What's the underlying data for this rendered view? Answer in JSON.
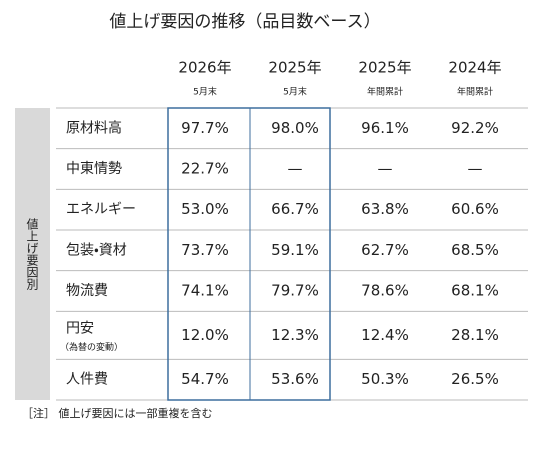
{
  "title": "値上げ要因の推移（品目数ベース）",
  "table": {
    "side_label": "値上げ要因別",
    "columns": [
      {
        "year": "2026年",
        "period": "5月末"
      },
      {
        "year": "2025年",
        "period": "5月末"
      },
      {
        "year": "2025年",
        "period": "年間累計"
      },
      {
        "year": "2024年",
        "period": "年間累計"
      }
    ],
    "rows": [
      {
        "label": "原材料高",
        "values": [
          "97.7%",
          "98.0%",
          "96.1%",
          "92.2%"
        ]
      },
      {
        "label": "中東情勢",
        "values": [
          "22.7%",
          "—",
          "—",
          "—"
        ]
      },
      {
        "label": "エネルギー",
        "values": [
          "53.0%",
          "66.7%",
          "63.8%",
          "60.6%"
        ]
      },
      {
        "label": "包装・資材",
        "values": [
          "73.7%",
          "59.1%",
          "62.7%",
          "68.5%"
        ]
      },
      {
        "label": "物流費",
        "values": [
          "74.1%",
          "79.7%",
          "78.6%",
          "68.1%"
        ]
      },
      {
        "label": "円安",
        "sublabel": "（為替の変動）",
        "values": [
          "12.0%",
          "12.3%",
          "12.4%",
          "28.1%"
        ]
      },
      {
        "label": "人件費",
        "values": [
          "54.7%",
          "53.6%",
          "50.3%",
          "26.5%"
        ]
      }
    ]
  },
  "note": "［注］ 値上げ要因には一部重複を含む"
}
